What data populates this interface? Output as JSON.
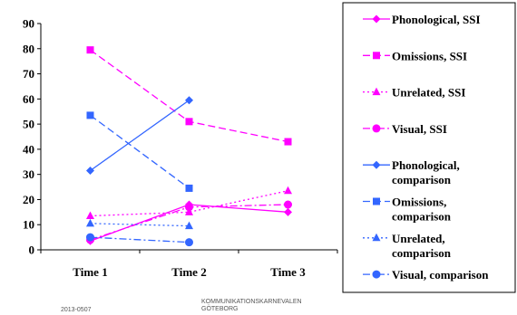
{
  "chart_data": {
    "type": "line",
    "categories": [
      "Time 1",
      "Time 2",
      "Time 3"
    ],
    "ylim": [
      0,
      90
    ],
    "yticks": [
      0,
      10,
      20,
      30,
      40,
      50,
      60,
      70,
      80,
      90
    ],
    "grid": false,
    "legend_position": "right",
    "series": [
      {
        "name": "Phonological, SSI",
        "legend_lines": [
          "Phonological, SSI"
        ],
        "values": [
          3.5,
          18,
          15
        ],
        "color": "#FF00FF",
        "dash": "solid",
        "marker": "diamond"
      },
      {
        "name": "Omissions, SSI",
        "legend_lines": [
          "Omissions, SSI"
        ],
        "values": [
          79.5,
          51,
          43
        ],
        "color": "#FF00FF",
        "dash": "dashed",
        "marker": "square"
      },
      {
        "name": "Unrelated, SSI",
        "legend_lines": [
          "Unrelated, SSI"
        ],
        "values": [
          13.5,
          15,
          23.5
        ],
        "color": "#FF00FF",
        "dash": "dotted",
        "marker": "triangle"
      },
      {
        "name": "Visual, SSI",
        "legend_lines": [
          "Visual, SSI"
        ],
        "values": [
          4,
          17,
          18
        ],
        "color": "#FF00FF",
        "dash": "dashdot",
        "marker": "circle"
      },
      {
        "name": "Phonological, comparison",
        "legend_lines": [
          "Phonological,",
          "comparison"
        ],
        "values": [
          31.5,
          59.5,
          null
        ],
        "color": "#3366FF",
        "dash": "solid",
        "marker": "diamond"
      },
      {
        "name": "Omissions, comparison",
        "legend_lines": [
          "Omissions,",
          "comparison"
        ],
        "values": [
          53.5,
          24.5,
          null
        ],
        "color": "#3366FF",
        "dash": "dashed",
        "marker": "square"
      },
      {
        "name": "Unrelated, comparison",
        "legend_lines": [
          "Unrelated,",
          "comparison"
        ],
        "values": [
          10.5,
          9.5,
          null
        ],
        "color": "#3366FF",
        "dash": "dotted",
        "marker": "triangle"
      },
      {
        "name": "Visual, comparison",
        "legend_lines": [
          "Visual, comparison"
        ],
        "values": [
          5,
          3,
          null
        ],
        "color": "#3366FF",
        "dash": "dashdot",
        "marker": "circle"
      }
    ]
  },
  "footer": {
    "date": "2013-0507",
    "org_line1": "KOMMUNIKATIONSKARNEVALEN",
    "org_line2": "GÖTEBORG"
  }
}
